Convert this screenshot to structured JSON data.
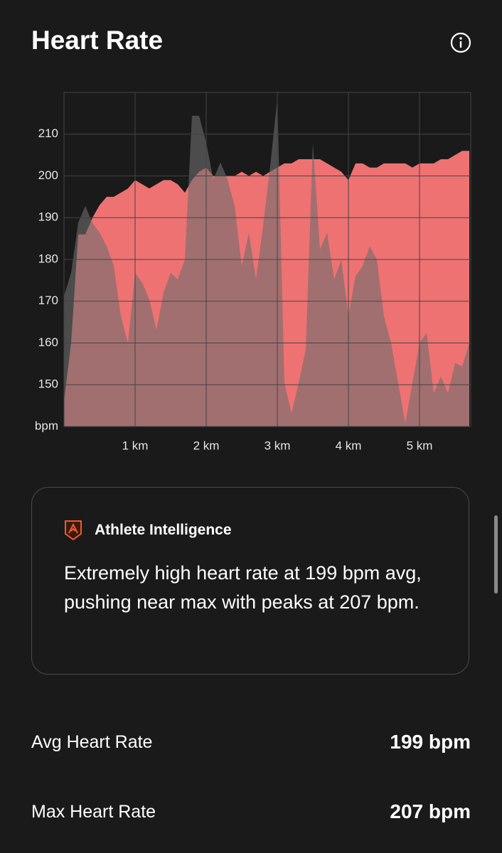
{
  "header": {
    "title": "Heart Rate"
  },
  "chart_data": {
    "type": "area",
    "x": [
      0,
      0.1,
      0.2,
      0.3,
      0.4,
      0.5,
      0.6,
      0.7,
      0.8,
      0.9,
      1.0,
      1.1,
      1.2,
      1.3,
      1.4,
      1.5,
      1.6,
      1.7,
      1.8,
      1.9,
      2.0,
      2.1,
      2.2,
      2.3,
      2.4,
      2.5,
      2.6,
      2.7,
      2.8,
      2.9,
      3.0,
      3.1,
      3.2,
      3.3,
      3.4,
      3.5,
      3.6,
      3.7,
      3.8,
      3.9,
      4.0,
      4.1,
      4.2,
      4.3,
      4.4,
      4.5,
      4.6,
      4.7,
      4.8,
      4.9,
      5.0,
      5.1,
      5.2,
      5.3,
      5.4,
      5.5,
      5.6,
      5.7
    ],
    "series": [
      {
        "color": "#ee7272",
        "values": [
          146,
          160,
          186,
          186,
          190,
          193,
          195,
          195,
          196,
          197,
          199,
          198,
          197,
          198,
          199,
          199,
          198,
          196,
          199,
          201,
          202,
          200,
          200,
          200,
          200,
          201,
          200,
          201,
          200,
          201,
          202,
          203,
          203,
          204,
          204,
          204,
          204,
          203,
          202,
          201,
          199,
          203,
          203,
          202,
          202,
          203,
          203,
          203,
          203,
          202,
          203,
          203,
          203,
          204,
          204,
          205,
          206,
          206
        ]
      },
      {
        "color": "#6e6e6e",
        "axis": "y2",
        "values": [
          39,
          46,
          61,
          66,
          61,
          58,
          54,
          48,
          33,
          25,
          46,
          43,
          38,
          29,
          40,
          46,
          44,
          50,
          93,
          93,
          85,
          74,
          79,
          74,
          66,
          48,
          58,
          44,
          60,
          78,
          98,
          13,
          4,
          13,
          23,
          85,
          53,
          58,
          44,
          50,
          33,
          45,
          48,
          54,
          50,
          33,
          25,
          13,
          1,
          13,
          25,
          28,
          10,
          15,
          10,
          19,
          18,
          25
        ]
      }
    ],
    "xlim": [
      0,
      5.72
    ],
    "xticks": [
      {
        "value": 1,
        "label": "1 km"
      },
      {
        "value": 2,
        "label": "2 km"
      },
      {
        "value": 3,
        "label": "3 km"
      },
      {
        "value": 4,
        "label": "4 km"
      },
      {
        "value": 5,
        "label": "5 km"
      }
    ],
    "ylim": [
      140,
      220
    ],
    "yticks": [
      {
        "value": 140,
        "label": "bpm"
      },
      150,
      160,
      170,
      180,
      190,
      200,
      210
    ],
    "y2lim": [
      0,
      100
    ],
    "grid": true
  },
  "insight": {
    "title": "Athlete Intelligence",
    "text": "Extremely high heart rate at 199 bpm avg, pushing near max with peaks at 207 bpm."
  },
  "stats": [
    {
      "label": "Avg Heart Rate",
      "value": "199 bpm"
    },
    {
      "label": "Max Heart Rate",
      "value": "207 bpm"
    }
  ]
}
